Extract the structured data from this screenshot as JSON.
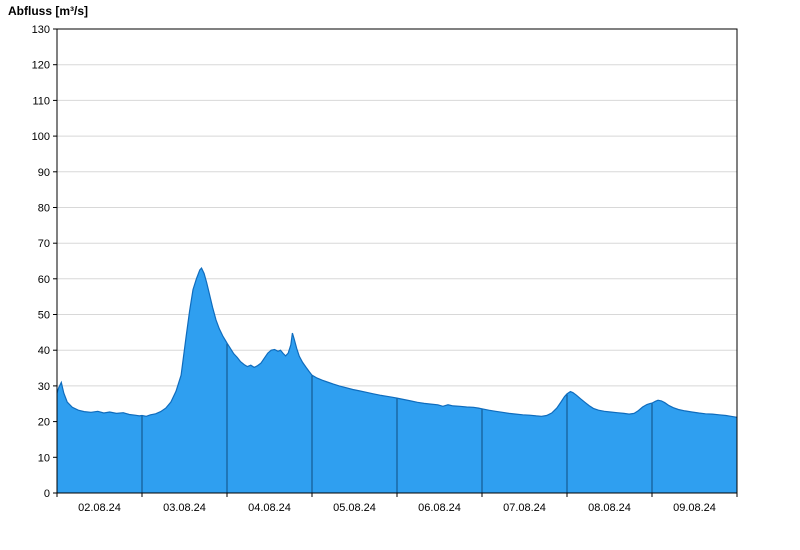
{
  "chart_data": {
    "type": "area",
    "title": "Abfluss [m³/s]",
    "ylabel": "Abfluss [m³/s]",
    "xlabel": "",
    "ylim": [
      0,
      130
    ],
    "ytick_step": 10,
    "x_range_days": [
      0,
      8
    ],
    "x_categories": [
      "02.08.24",
      "03.08.24",
      "04.08.24",
      "05.08.24",
      "06.08.24",
      "07.08.24",
      "08.08.24",
      "09.08.24"
    ],
    "grid": "horizontal light gray lines; dark vertical day-boundary lines inside filled area",
    "legend": "none",
    "colors": {
      "fill": "#2f9ff0",
      "line": "#0f6cbd",
      "day_line": "#0f4c81",
      "grid": "#d8d8d8",
      "frame": "#000000",
      "background": "#ffffff"
    },
    "series": [
      {
        "name": "Abfluss",
        "unit": "m³/s",
        "points": [
          [
            0.0,
            28
          ],
          [
            0.02,
            29.5
          ],
          [
            0.05,
            31
          ],
          [
            0.08,
            28
          ],
          [
            0.12,
            25.5
          ],
          [
            0.18,
            24
          ],
          [
            0.25,
            23.2
          ],
          [
            0.32,
            22.8
          ],
          [
            0.4,
            22.6
          ],
          [
            0.48,
            22.9
          ],
          [
            0.55,
            22.4
          ],
          [
            0.62,
            22.7
          ],
          [
            0.7,
            22.3
          ],
          [
            0.78,
            22.5
          ],
          [
            0.85,
            22.0
          ],
          [
            0.92,
            21.8
          ],
          [
            0.97,
            21.6
          ],
          [
            1.0,
            21.7
          ],
          [
            1.05,
            21.5
          ],
          [
            1.1,
            21.9
          ],
          [
            1.16,
            22.2
          ],
          [
            1.22,
            22.8
          ],
          [
            1.28,
            23.8
          ],
          [
            1.34,
            25.5
          ],
          [
            1.4,
            28.5
          ],
          [
            1.46,
            33
          ],
          [
            1.52,
            44
          ],
          [
            1.56,
            51
          ],
          [
            1.6,
            57
          ],
          [
            1.64,
            60
          ],
          [
            1.68,
            62.5
          ],
          [
            1.7,
            63
          ],
          [
            1.73,
            61.5
          ],
          [
            1.76,
            59
          ],
          [
            1.79,
            56
          ],
          [
            1.83,
            52
          ],
          [
            1.87,
            48.5
          ],
          [
            1.91,
            46
          ],
          [
            1.95,
            44
          ],
          [
            1.98,
            42.8
          ],
          [
            2.0,
            42
          ],
          [
            2.04,
            40.5
          ],
          [
            2.08,
            39
          ],
          [
            2.12,
            38
          ],
          [
            2.16,
            36.8
          ],
          [
            2.2,
            36
          ],
          [
            2.24,
            35.4
          ],
          [
            2.28,
            35.8
          ],
          [
            2.32,
            35.2
          ],
          [
            2.36,
            35.7
          ],
          [
            2.4,
            36.4
          ],
          [
            2.44,
            37.8
          ],
          [
            2.48,
            39.2
          ],
          [
            2.52,
            40
          ],
          [
            2.56,
            40.2
          ],
          [
            2.6,
            39.7
          ],
          [
            2.63,
            40
          ],
          [
            2.66,
            39.1
          ],
          [
            2.69,
            38.4
          ],
          [
            2.72,
            39.2
          ],
          [
            2.75,
            41.5
          ],
          [
            2.77,
            44.8
          ],
          [
            2.79,
            43.2
          ],
          [
            2.82,
            40.5
          ],
          [
            2.85,
            38.3
          ],
          [
            2.89,
            36.6
          ],
          [
            2.93,
            35.2
          ],
          [
            2.97,
            33.9
          ],
          [
            3.0,
            33
          ],
          [
            3.06,
            32.2
          ],
          [
            3.12,
            31.6
          ],
          [
            3.18,
            31.1
          ],
          [
            3.25,
            30.5
          ],
          [
            3.32,
            30
          ],
          [
            3.4,
            29.5
          ],
          [
            3.48,
            29
          ],
          [
            3.56,
            28.6
          ],
          [
            3.64,
            28.2
          ],
          [
            3.72,
            27.8
          ],
          [
            3.8,
            27.4
          ],
          [
            3.88,
            27.1
          ],
          [
            3.95,
            26.8
          ],
          [
            4.0,
            26.6
          ],
          [
            4.08,
            26.2
          ],
          [
            4.16,
            25.8
          ],
          [
            4.24,
            25.4
          ],
          [
            4.32,
            25.1
          ],
          [
            4.4,
            24.9
          ],
          [
            4.48,
            24.7
          ],
          [
            4.54,
            24.3
          ],
          [
            4.6,
            24.7
          ],
          [
            4.66,
            24.4
          ],
          [
            4.74,
            24.3
          ],
          [
            4.82,
            24.1
          ],
          [
            4.9,
            24.0
          ],
          [
            4.96,
            23.8
          ],
          [
            5.0,
            23.6
          ],
          [
            5.08,
            23.2
          ],
          [
            5.16,
            22.9
          ],
          [
            5.24,
            22.6
          ],
          [
            5.32,
            22.3
          ],
          [
            5.4,
            22.1
          ],
          [
            5.48,
            21.9
          ],
          [
            5.56,
            21.8
          ],
          [
            5.64,
            21.6
          ],
          [
            5.7,
            21.5
          ],
          [
            5.76,
            21.7
          ],
          [
            5.82,
            22.4
          ],
          [
            5.88,
            23.8
          ],
          [
            5.93,
            25.5
          ],
          [
            5.97,
            27
          ],
          [
            6.0,
            27.8
          ],
          [
            6.04,
            28.4
          ],
          [
            6.07,
            28.1
          ],
          [
            6.11,
            27.4
          ],
          [
            6.16,
            26.4
          ],
          [
            6.21,
            25.4
          ],
          [
            6.26,
            24.5
          ],
          [
            6.31,
            23.7
          ],
          [
            6.37,
            23.2
          ],
          [
            6.44,
            22.9
          ],
          [
            6.51,
            22.7
          ],
          [
            6.59,
            22.5
          ],
          [
            6.67,
            22.3
          ],
          [
            6.73,
            22.1
          ],
          [
            6.79,
            22.3
          ],
          [
            6.84,
            23.1
          ],
          [
            6.89,
            24.1
          ],
          [
            6.94,
            24.8
          ],
          [
            6.98,
            25.1
          ],
          [
            7.0,
            25.2
          ],
          [
            7.04,
            25.7
          ],
          [
            7.07,
            26
          ],
          [
            7.11,
            25.8
          ],
          [
            7.15,
            25.3
          ],
          [
            7.2,
            24.5
          ],
          [
            7.25,
            23.9
          ],
          [
            7.31,
            23.4
          ],
          [
            7.39,
            23.0
          ],
          [
            7.47,
            22.7
          ],
          [
            7.55,
            22.4
          ],
          [
            7.63,
            22.2
          ],
          [
            7.71,
            22.1
          ],
          [
            7.79,
            21.9
          ],
          [
            7.87,
            21.7
          ],
          [
            7.93,
            21.5
          ],
          [
            8.0,
            21.2
          ]
        ]
      }
    ]
  }
}
